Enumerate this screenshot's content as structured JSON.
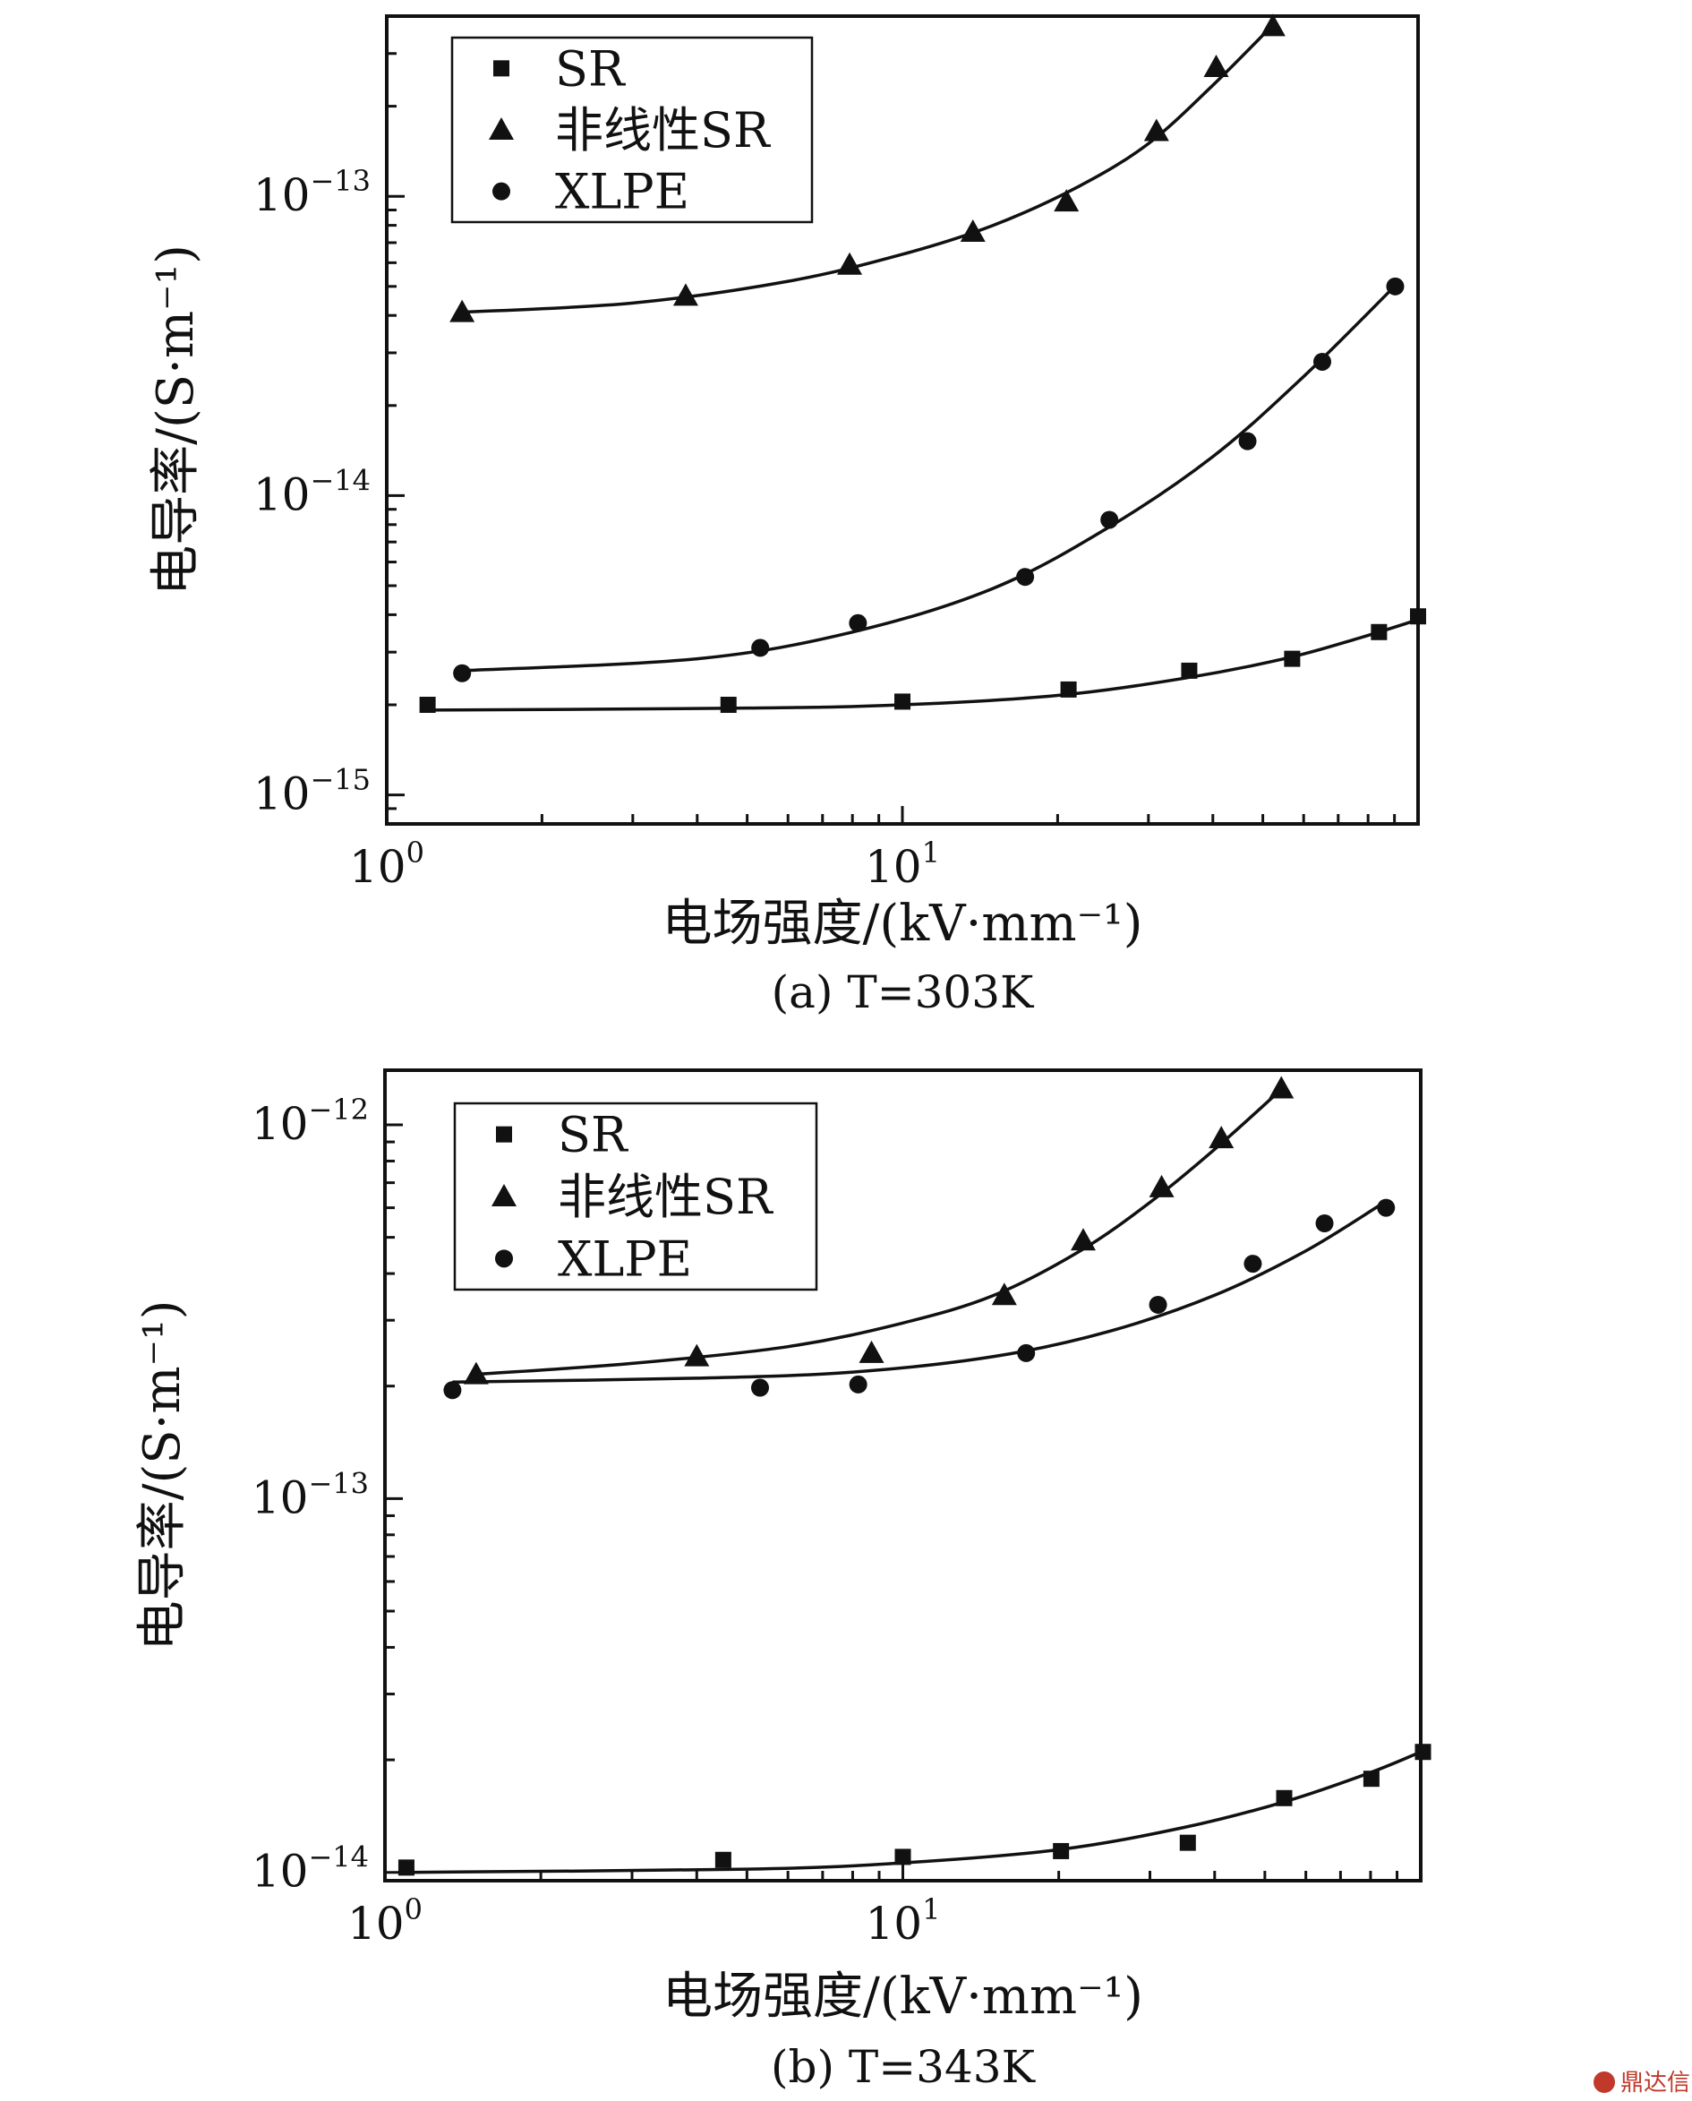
{
  "chart_data": [
    {
      "type": "scatter",
      "panel": "a",
      "caption": "(a) T=303K",
      "xlabel": "电场强度/(kV·mm⁻¹)",
      "ylabel": "电导率/(S·m⁻¹)",
      "xscale": "log",
      "yscale": "log",
      "xlim": [
        1,
        100
      ],
      "ylim": [
        8e-16,
        4e-13
      ],
      "x_ticks": [
        "10^0",
        "10^1"
      ],
      "y_ticks": [
        "10^-15",
        "10^-14",
        "10^-13"
      ],
      "legend": {
        "position": "top-left"
      },
      "series": [
        {
          "name": "SR",
          "marker": "square",
          "x": [
            1.2,
            4.6,
            10,
            21,
            36,
            57,
            84,
            100
          ],
          "y": [
            2e-15,
            2e-15,
            2.05e-15,
            2.25e-15,
            2.6e-15,
            2.85e-15,
            3.5e-15,
            3.95e-15
          ],
          "fit_x": [
            1.2,
            5,
            10,
            20,
            35,
            55,
            75,
            100
          ],
          "fit_y": [
            1.92e-15,
            1.95e-15,
            2e-15,
            2.15e-15,
            2.45e-15,
            2.85e-15,
            3.3e-15,
            3.85e-15
          ]
        },
        {
          "name": "非线性SR",
          "marker": "triangle",
          "x": [
            1.4,
            3.8,
            7.9,
            13.7,
            20.8,
            31.1,
            40.6,
            52.3
          ],
          "y": [
            4.1e-14,
            4.65e-14,
            5.9e-14,
            7.6e-14,
            9.6e-14,
            1.65e-13,
            2.7e-13,
            3.7e-13
          ],
          "fit_x": [
            1.4,
            3,
            6,
            10,
            15,
            22,
            30,
            40,
            52
          ],
          "fit_y": [
            4.1e-14,
            4.4e-14,
            5.2e-14,
            6.4e-14,
            8e-14,
            1.08e-13,
            1.5e-13,
            2.35e-13,
            3.7e-13
          ]
        },
        {
          "name": "XLPE",
          "marker": "circle",
          "x": [
            1.4,
            5.3,
            8.2,
            17.3,
            25.2,
            46.7,
            65.2,
            90.3
          ],
          "y": [
            2.55e-15,
            3.1e-15,
            3.75e-15,
            5.35e-15,
            8.3e-15,
            1.52e-14,
            2.8e-14,
            5e-14
          ],
          "fit_x": [
            1.4,
            4,
            8,
            15,
            25,
            40,
            60,
            90
          ],
          "fit_y": [
            2.6e-15,
            2.85e-15,
            3.5e-15,
            4.9e-15,
            7.8e-15,
            1.35e-14,
            2.5e-14,
            5e-14
          ]
        }
      ]
    },
    {
      "type": "scatter",
      "panel": "b",
      "caption": "(b) T=343K",
      "xlabel": "电场强度/(kV·mm⁻¹)",
      "ylabel": "电导率/(S·m⁻¹)",
      "xscale": "log",
      "yscale": "log",
      "xlim": [
        1,
        100
      ],
      "ylim": [
        9.5e-15,
        1.4e-12
      ],
      "x_ticks": [
        "10^0",
        "10^1"
      ],
      "y_ticks": [
        "10^-14",
        "10^-13",
        "10^-12"
      ],
      "legend": {
        "position": "top-left"
      },
      "series": [
        {
          "name": "SR",
          "marker": "square",
          "x": [
            1.1,
            4.5,
            10,
            20.2,
            35.5,
            54.5,
            80.3,
            101
          ],
          "y": [
            1.03e-14,
            1.08e-14,
            1.1e-14,
            1.14e-14,
            1.2e-14,
            1.58e-14,
            1.78e-14,
            2.1e-14
          ],
          "fit_x": [
            1.1,
            5,
            10,
            20,
            35,
            55,
            80,
            100
          ],
          "fit_y": [
            1e-14,
            1.02e-14,
            1.06e-14,
            1.15e-14,
            1.32e-14,
            1.55e-14,
            1.85e-14,
            2.1e-14
          ]
        },
        {
          "name": "非线性SR",
          "marker": "triangle",
          "x": [
            1.5,
            4.0,
            8.7,
            15.7,
            22.3,
            31.6,
            41.2,
            53.8
          ],
          "y": [
            2.15e-13,
            2.4e-13,
            2.45e-13,
            3.5e-13,
            4.9e-13,
            6.8e-13,
            9.2e-13,
            1.25e-12
          ],
          "fit_x": [
            1.5,
            3,
            6,
            10,
            15,
            22,
            30,
            40,
            54
          ],
          "fit_y": [
            2.15e-13,
            2.3e-13,
            2.55e-13,
            2.95e-13,
            3.5e-13,
            4.6e-13,
            6.2e-13,
            8.6e-13,
            1.25e-12
          ]
        },
        {
          "name": "XLPE",
          "marker": "circle",
          "x": [
            1.35,
            5.3,
            8.2,
            17.3,
            31.1,
            47.4,
            65.2,
            85.7
          ],
          "y": [
            1.95e-13,
            1.98e-13,
            2.02e-13,
            2.45e-13,
            3.3e-13,
            4.25e-13,
            5.45e-13,
            6e-13
          ],
          "fit_x": [
            1.35,
            4,
            8,
            15,
            25,
            40,
            60,
            85
          ],
          "fit_y": [
            2.05e-13,
            2.1e-13,
            2.18e-13,
            2.4e-13,
            2.8e-13,
            3.5e-13,
            4.6e-13,
            6.2e-13
          ]
        }
      ]
    }
  ],
  "watermark": "鼎达信"
}
